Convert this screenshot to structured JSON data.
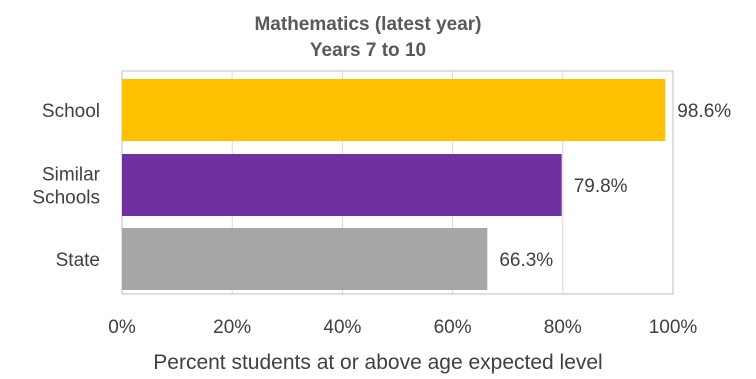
{
  "chart_data": {
    "type": "bar",
    "orientation": "horizontal",
    "title": [
      "Mathematics (latest year)",
      "Years 7 to 10"
    ],
    "xlabel": "Percent students at or above age expected level",
    "ylabel": "",
    "categories": [
      {
        "lines": [
          "School"
        ]
      },
      {
        "lines": [
          "Similar",
          "Schools"
        ]
      },
      {
        "lines": [
          "State"
        ]
      }
    ],
    "values": [
      98.6,
      79.8,
      66.3
    ],
    "value_labels": [
      "98.6%",
      "79.8%",
      "66.3%"
    ],
    "colors": [
      "#FFC000",
      "#7030A0",
      "#A6A6A6"
    ],
    "xlim": [
      0,
      100
    ],
    "xticks": [
      0,
      20,
      40,
      60,
      80,
      100
    ],
    "xtick_labels": [
      "0%",
      "20%",
      "40%",
      "60%",
      "80%",
      "100%"
    ],
    "grid": true,
    "legend": "none"
  }
}
